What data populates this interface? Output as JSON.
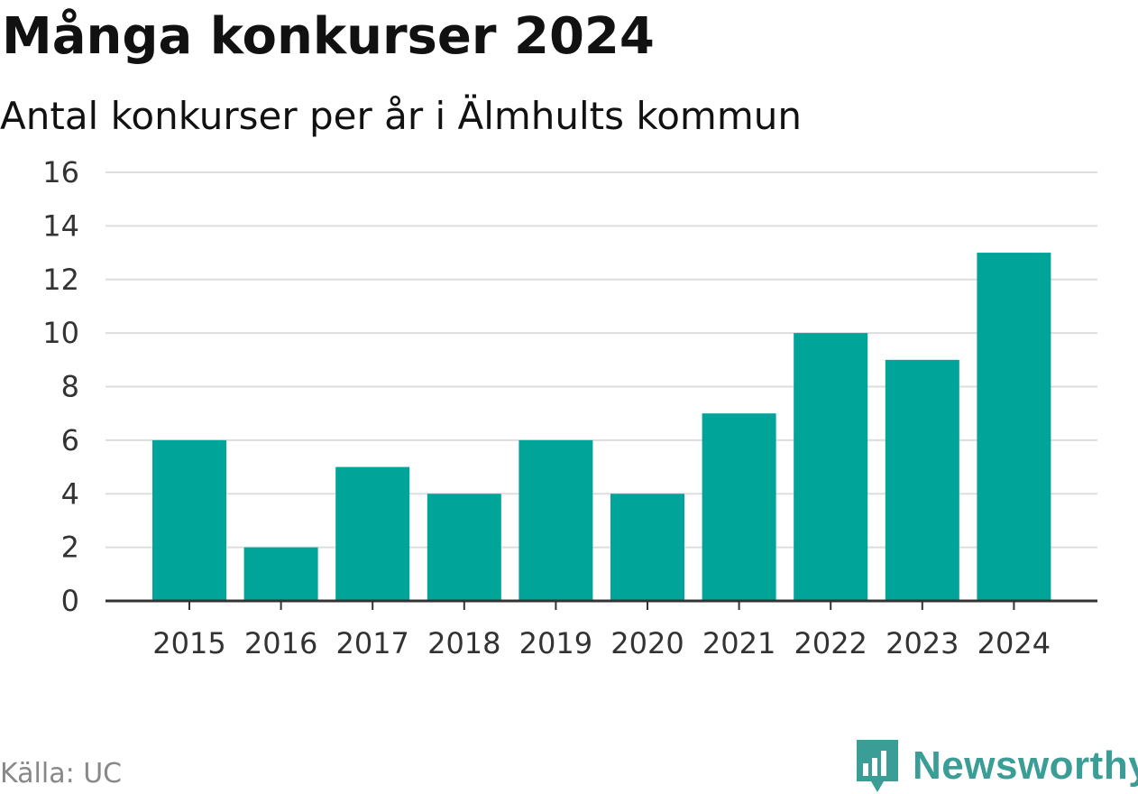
{
  "chart_data": {
    "type": "bar",
    "title": "Många konkurser 2024",
    "subtitle": "Antal konkurser per år i Älmhults kommun",
    "categories": [
      "2015",
      "2016",
      "2017",
      "2018",
      "2019",
      "2020",
      "2021",
      "2022",
      "2023",
      "2024"
    ],
    "values": [
      6,
      2,
      5,
      4,
      6,
      4,
      7,
      10,
      9,
      13
    ],
    "ylim": [
      0,
      16
    ],
    "yticks": [
      0,
      2,
      4,
      6,
      8,
      10,
      12,
      14,
      16
    ],
    "xlabel": "",
    "ylabel": "",
    "grid": true,
    "bar_color": "#00a499"
  },
  "source": "Källa: UC",
  "brand": {
    "name": "Newsworthy",
    "icon": "newsworthy-logo-icon",
    "color": "#3a9e96"
  }
}
